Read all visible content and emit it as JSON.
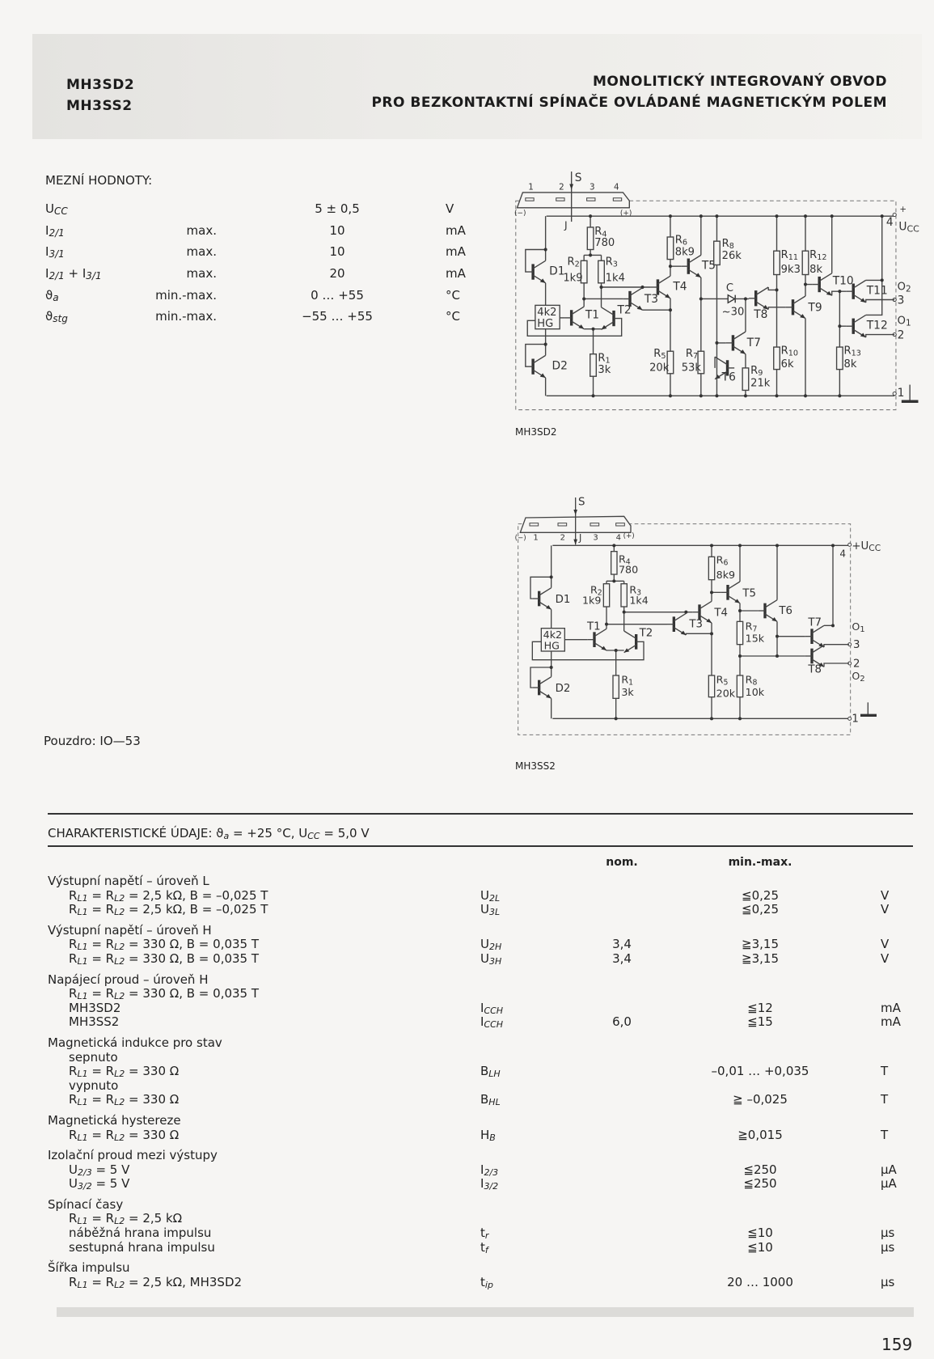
{
  "header": {
    "part_numbers": [
      "MH3SD2",
      "MH3SS2"
    ],
    "title_line1": "MONOLITICKÝ INTEGROVANÝ OBVOD",
    "title_line2": "PRO BEZKONTAKTNÍ SPÍNAČE OVLÁDANÉ MAGNETICKÝM POLEM"
  },
  "limits": {
    "heading": "MEZNÍ HODNOTY:",
    "rows": [
      {
        "symbol": "U_{CC}",
        "qualifier": "",
        "value": "5 ± 0,5",
        "unit": "V"
      },
      {
        "symbol": "I_{2/1}",
        "qualifier": "max.",
        "value": "10",
        "unit": "mA"
      },
      {
        "symbol": "I_{3/1}",
        "qualifier": "max.",
        "value": "10",
        "unit": "mA"
      },
      {
        "symbol": "I_{2/1} + I_{3/1}",
        "qualifier": "max.",
        "value": "20",
        "unit": "mA"
      },
      {
        "symbol": "ϑ_{a}",
        "qualifier": "min.-max.",
        "value": "0 … +55",
        "unit": "°C"
      },
      {
        "symbol": "ϑ_{stg}",
        "qualifier": "min.-max.",
        "value": "−55 … +55",
        "unit": "°C"
      }
    ]
  },
  "package": "Pouzdro:  IO—53",
  "diagrams": {
    "mh3sd2": {
      "caption": "MH3SD2",
      "pins": [
        "1",
        "2",
        "3",
        "4"
      ],
      "labels": {
        "S": "S",
        "J": "J",
        "minus": "(−)",
        "plus": "(+)",
        "vcc_plus": "+",
        "vcc_pin": "4",
        "vcc": "U_{CC}",
        "gnd_pin": "1",
        "out3": "3",
        "out2": "2",
        "o2": "O_{2}",
        "o1": "O_{1}",
        "hg_value": "4k2",
        "hg": "HG",
        "cap": "C",
        "cap_value": "~30"
      },
      "transistors": [
        "D1",
        "D2",
        "T1",
        "T2",
        "T3",
        "T4",
        "T5",
        "T6",
        "T7",
        "T8",
        "T9",
        "T10",
        "T11",
        "T12"
      ],
      "resistors": [
        {
          "name": "R",
          "index": "4",
          "value": "780"
        },
        {
          "name": "R",
          "index": "2",
          "value": "1k9"
        },
        {
          "name": "R",
          "index": "3",
          "value": "1k4"
        },
        {
          "name": "R",
          "index": "1",
          "value": "3k"
        },
        {
          "name": "R",
          "index": "6",
          "value": "8k9"
        },
        {
          "name": "R",
          "index": "5",
          "value": "20k"
        },
        {
          "name": "R",
          "index": "7",
          "value": "53k"
        },
        {
          "name": "R",
          "index": "8",
          "value": "26k"
        },
        {
          "name": "R",
          "index": "9",
          "value": "21k"
        },
        {
          "name": "R",
          "index": "11",
          "value": "9k3"
        },
        {
          "name": "R",
          "index": "10",
          "value": "6k"
        },
        {
          "name": "R",
          "index": "12",
          "value": "8k"
        },
        {
          "name": "R",
          "index": "13",
          "value": "8k"
        }
      ]
    },
    "mh3ss2": {
      "caption": "MH3SS2",
      "pins": [
        "1",
        "2",
        "3",
        "4"
      ],
      "labels": {
        "S": "S",
        "J": "J",
        "minus": "(−)",
        "plus": "(+)",
        "vcc": "+U_{CC}",
        "vcc_pin": "4",
        "gnd_pin": "1",
        "out3": "3",
        "out2": "2",
        "o1": "O_{1}",
        "o2": "O_{2}",
        "hg_value": "4k2",
        "hg": "HG"
      },
      "transistors": [
        "D1",
        "D2",
        "T1",
        "T2",
        "T3",
        "T4",
        "T5",
        "T6",
        "T7",
        "T8"
      ],
      "resistors": [
        {
          "name": "R",
          "index": "4",
          "value": "780"
        },
        {
          "name": "R",
          "index": "2",
          "value": "1k9"
        },
        {
          "name": "R",
          "index": "3",
          "value": "1k4"
        },
        {
          "name": "R",
          "index": "1",
          "value": "3k"
        },
        {
          "name": "R",
          "index": "6",
          "value": "8k9"
        },
        {
          "name": "R",
          "index": "5",
          "value": "20k"
        },
        {
          "name": "R",
          "index": "7",
          "value": "15k"
        },
        {
          "name": "R",
          "index": "8",
          "value": "10k"
        }
      ]
    }
  },
  "characteristics": {
    "heading": "CHARAKTERISTICKÉ ÚDAJE: ϑ_{a} = +25 °C, U_{CC} = 5,0 V",
    "col_nom": "nom.",
    "col_minmax": "min.-max.",
    "groups": [
      {
        "title": "Výstupní napětí – úroveň L",
        "rows": [
          {
            "desc": "R_{L1} = R_{L2} = 2,5 kΩ, B = –0,025 T",
            "symbol": "U_{2L}",
            "nom": "",
            "minmax": "≦0,25",
            "unit": "V"
          },
          {
            "desc": "R_{L1} = R_{L2} = 2,5 kΩ, B = –0,025 T",
            "symbol": "U_{3L}",
            "nom": "",
            "minmax": "≦0,25",
            "unit": "V"
          }
        ]
      },
      {
        "title": "Výstupní napětí – úroveň H",
        "rows": [
          {
            "desc": "R_{L1} = R_{L2} = 330 Ω, B = 0,035 T",
            "symbol": "U_{2H}",
            "nom": "3,4",
            "minmax": "≧3,15",
            "unit": "V"
          },
          {
            "desc": "R_{L1} = R_{L2} = 330 Ω, B = 0,035 T",
            "symbol": "U_{3H}",
            "nom": "3,4",
            "minmax": "≧3,15",
            "unit": "V"
          }
        ]
      },
      {
        "title": "Napájecí proud – úroveň H",
        "rows": [
          {
            "desc": "R_{L1} = R_{L2} = 330 Ω, B = 0,035 T",
            "symbol": "",
            "nom": "",
            "minmax": "",
            "unit": ""
          },
          {
            "desc": "MH3SD2",
            "symbol": "I_{CCH}",
            "nom": "",
            "minmax": "≦12",
            "unit": "mA"
          },
          {
            "desc": "MH3SS2",
            "symbol": "I_{CCH}",
            "nom": "6,0",
            "minmax": "≦15",
            "unit": "mA"
          }
        ]
      },
      {
        "title": "Magnetická indukce pro stav",
        "rows": [
          {
            "desc": "sepnuto",
            "symbol": "",
            "nom": "",
            "minmax": "",
            "unit": ""
          },
          {
            "desc": "R_{L1} = R_{L2} = 330 Ω",
            "symbol": "B_{LH}",
            "nom": "",
            "minmax": "–0,01 … +0,035",
            "unit": "T"
          },
          {
            "desc": "vypnuto",
            "symbol": "",
            "nom": "",
            "minmax": "",
            "unit": ""
          },
          {
            "desc": "R_{L1} = R_{L2} = 330 Ω",
            "symbol": "B_{HL}",
            "nom": "",
            "minmax": "≧ –0,025",
            "unit": "T"
          }
        ]
      },
      {
        "title": "Magnetická hystereze",
        "rows": [
          {
            "desc": "R_{L1} = R_{L2} = 330 Ω",
            "symbol": "H_{B}",
            "nom": "",
            "minmax": "≧0,015",
            "unit": "T"
          }
        ]
      },
      {
        "title": "Izolační proud mezi výstupy",
        "rows": [
          {
            "desc": "U_{2/3} = 5 V",
            "symbol": "I_{2/3}",
            "nom": "",
            "minmax": "≦250",
            "unit": "μA"
          },
          {
            "desc": "U_{3/2} = 5 V",
            "symbol": "I_{3/2}",
            "nom": "",
            "minmax": "≦250",
            "unit": "μA"
          }
        ]
      },
      {
        "title": "Spínací časy",
        "rows": [
          {
            "desc": "R_{L1} = R_{L2} = 2,5 kΩ",
            "symbol": "",
            "nom": "",
            "minmax": "",
            "unit": ""
          },
          {
            "desc": "náběžná hrana impulsu",
            "symbol": "t_{r}",
            "nom": "",
            "minmax": "≦10",
            "unit": "μs"
          },
          {
            "desc": "sestupná hrana impulsu",
            "symbol": "t_{f}",
            "nom": "",
            "minmax": "≦10",
            "unit": "μs"
          }
        ]
      },
      {
        "title": "Šířka impulsu",
        "rows": [
          {
            "desc": "R_{L1} = R_{L2} = 2,5 kΩ, MH3SD2",
            "symbol": "t_{ip}",
            "nom": "",
            "minmax": "20 … 1000",
            "unit": "μs"
          }
        ]
      }
    ]
  },
  "page_number": "159"
}
